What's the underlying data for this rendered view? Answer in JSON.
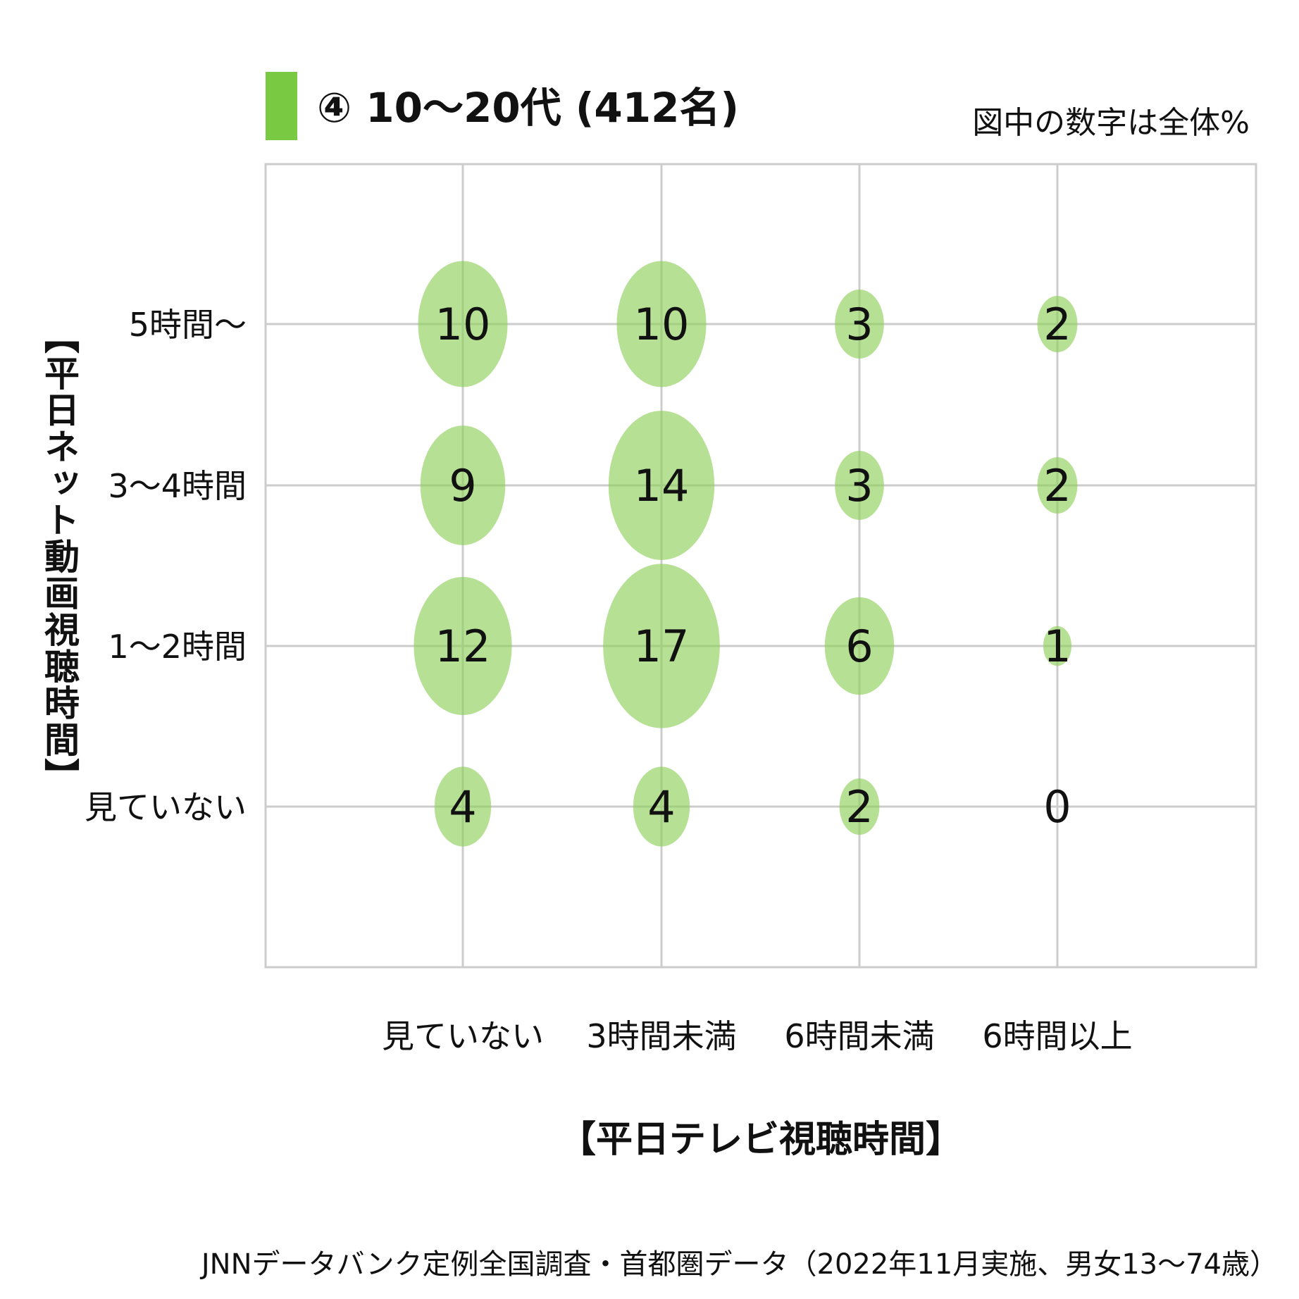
{
  "title": "④ 10～20代 (412名)",
  "note": "図中の数字は全体%",
  "source": "JNNデータバンク定例全国調査・首都圏データ（2022年11月実施、男女13～74歳）",
  "colors": {
    "bubble": "#8fcf5a",
    "legend": "#7ac943",
    "grid": "#cccccc",
    "text": "#111111"
  },
  "chart_data": {
    "type": "bubble",
    "title": "④ 10～20代 (412名)",
    "xlabel": "【平日テレビ視聴時間】",
    "ylabel": "【平日ネット動画視聴時間】",
    "x_categories": [
      "見ていない",
      "3時間未満",
      "6時間未満",
      "6時間以上"
    ],
    "y_categories": [
      "5時間～",
      "3～4時間",
      "1～2時間",
      "見ていない"
    ],
    "unit": "%",
    "values": [
      [
        10,
        10,
        3,
        2
      ],
      [
        9,
        14,
        3,
        2
      ],
      [
        12,
        17,
        6,
        1
      ],
      [
        4,
        4,
        2,
        0
      ]
    ],
    "grid": true
  }
}
